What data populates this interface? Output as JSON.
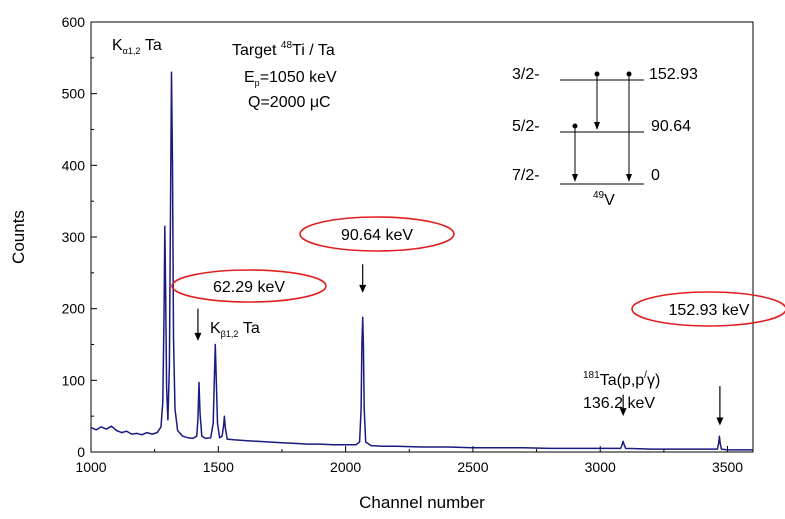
{
  "chart_data": {
    "type": "line",
    "title": "",
    "xlabel": "Channel number",
    "ylabel": "Counts",
    "xlim": [
      1000,
      3600
    ],
    "ylim": [
      0,
      600
    ],
    "x_ticks": [
      1000,
      1500,
      2000,
      2500,
      3000,
      3500
    ],
    "y_ticks": [
      0,
      100,
      200,
      300,
      400,
      500,
      600
    ],
    "grid": false,
    "series": [
      {
        "name": "",
        "color": "#1a1a80",
        "points": [
          [
            1000,
            34
          ],
          [
            1020,
            31
          ],
          [
            1040,
            35
          ],
          [
            1060,
            32
          ],
          [
            1080,
            36
          ],
          [
            1100,
            30
          ],
          [
            1120,
            27
          ],
          [
            1140,
            29
          ],
          [
            1160,
            25
          ],
          [
            1180,
            26
          ],
          [
            1200,
            24
          ],
          [
            1220,
            27
          ],
          [
            1240,
            25
          ],
          [
            1260,
            27
          ],
          [
            1275,
            35
          ],
          [
            1282,
            70
          ],
          [
            1287,
            200
          ],
          [
            1290,
            315
          ],
          [
            1293,
            230
          ],
          [
            1297,
            90
          ],
          [
            1302,
            45
          ],
          [
            1308,
            120
          ],
          [
            1313,
            380
          ],
          [
            1316,
            530
          ],
          [
            1320,
            400
          ],
          [
            1324,
            160
          ],
          [
            1330,
            60
          ],
          [
            1340,
            30
          ],
          [
            1360,
            22
          ],
          [
            1380,
            20
          ],
          [
            1400,
            19
          ],
          [
            1415,
            22
          ],
          [
            1420,
            45
          ],
          [
            1424,
            97
          ],
          [
            1428,
            55
          ],
          [
            1435,
            22
          ],
          [
            1450,
            19
          ],
          [
            1470,
            20
          ],
          [
            1480,
            40
          ],
          [
            1485,
            110
          ],
          [
            1488,
            150
          ],
          [
            1492,
            100
          ],
          [
            1497,
            40
          ],
          [
            1505,
            20
          ],
          [
            1515,
            22
          ],
          [
            1521,
            38
          ],
          [
            1524,
            50
          ],
          [
            1527,
            35
          ],
          [
            1535,
            18
          ],
          [
            1560,
            17
          ],
          [
            1600,
            16
          ],
          [
            1650,
            15
          ],
          [
            1700,
            14
          ],
          [
            1750,
            13
          ],
          [
            1800,
            12
          ],
          [
            1850,
            11
          ],
          [
            1900,
            11
          ],
          [
            1950,
            10
          ],
          [
            2000,
            10
          ],
          [
            2040,
            10
          ],
          [
            2055,
            14
          ],
          [
            2061,
            60
          ],
          [
            2064,
            150
          ],
          [
            2067,
            188
          ],
          [
            2070,
            150
          ],
          [
            2073,
            60
          ],
          [
            2079,
            14
          ],
          [
            2100,
            9
          ],
          [
            2150,
            8
          ],
          [
            2200,
            8
          ],
          [
            2300,
            7
          ],
          [
            2400,
            7
          ],
          [
            2500,
            6
          ],
          [
            2600,
            6
          ],
          [
            2700,
            6
          ],
          [
            2800,
            5
          ],
          [
            2900,
            5
          ],
          [
            3000,
            5
          ],
          [
            3080,
            5
          ],
          [
            3086,
            10
          ],
          [
            3090,
            15
          ],
          [
            3094,
            10
          ],
          [
            3100,
            5
          ],
          [
            3200,
            4
          ],
          [
            3300,
            4
          ],
          [
            3400,
            4
          ],
          [
            3460,
            4
          ],
          [
            3465,
            12
          ],
          [
            3468,
            22
          ],
          [
            3471,
            12
          ],
          [
            3476,
            4
          ],
          [
            3500,
            3
          ],
          [
            3550,
            3
          ],
          [
            3600,
            3
          ]
        ]
      }
    ],
    "peak_annotations": [
      {
        "label": "62.29 keV",
        "arrow_x": 1420,
        "arrow_top": 200,
        "arrow_bottom": 155
      },
      {
        "label": "90.64 keV",
        "arrow_x": 2067,
        "arrow_top": 262,
        "arrow_bottom": 222
      },
      {
        "label": "152.93 keV",
        "arrow_x": 3470,
        "arrow_top": 92,
        "arrow_bottom": 37
      },
      {
        "label": "136.2 keV",
        "arrow_x": 3090,
        "arrow_top": 80,
        "arrow_bottom": 50
      }
    ],
    "text_labels": {
      "k_alpha": {
        "main": "K",
        "sub": "α1,2",
        "suffix": " Ta"
      },
      "k_beta": {
        "main": "K",
        "sub": "β1,2",
        "suffix": " Ta"
      },
      "target": {
        "prefix": "Target ",
        "sup": "48",
        "main": "Ti / Ta"
      },
      "ep": {
        "main": "E",
        "sub": "p",
        "suffix": "=1050 keV"
      },
      "q": "Q=2000 μC",
      "reaction": {
        "sup": "181",
        "main": "Ta(p,p",
        "sup2": "/",
        "suffix": "γ)"
      }
    },
    "level_scheme": {
      "levels": [
        {
          "spin": "3/2-",
          "energy": "152.93"
        },
        {
          "spin": "5/2-",
          "energy": "90.64"
        },
        {
          "spin": "7/2-",
          "energy": "0"
        }
      ],
      "nucleus_sup": "49",
      "nucleus": "V"
    }
  }
}
